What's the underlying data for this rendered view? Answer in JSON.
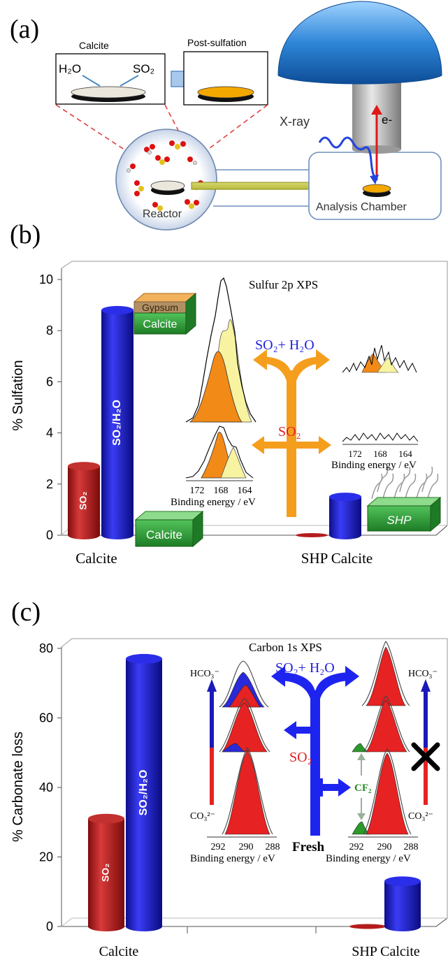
{
  "panel_labels": [
    "(a)",
    "(b)",
    "(c)"
  ],
  "schematic": {
    "calcite_box_title": "Calcite",
    "h2o": "H₂O",
    "so2": "SO₂",
    "post_sulfation_title": "Post-sulfation",
    "xray": "X-ray",
    "electron": "e-",
    "reactor": "Reactor",
    "analysis_chamber": "Analysis Chamber"
  },
  "panel_b": {
    "inset_title": "Sulfur 2p XPS",
    "layer_gypsum": "Gypsum",
    "layer_calcite": "Calcite",
    "block_calcite": "Calcite",
    "block_shp": "SHP",
    "arrow_so2_h2o": "SO₂+ H₂O",
    "arrow_so2": "SO₂",
    "be_ticks": [
      "172",
      "168",
      "164"
    ],
    "be_label_left": "Binding energy / eV",
    "be_label_right": "Binding energy / eV"
  },
  "panel_c": {
    "inset_title": "Carbon 1s XPS",
    "arrow_so2_h2o": "SO₂+ H₂O",
    "arrow_so2": "SO₂",
    "fresh": "Fresh",
    "cf2": "CF₂",
    "hco3_left": "HCO₃⁻",
    "co3_left": "CO₃²⁻",
    "hco3_right": "HCO₃⁻",
    "co3_right": "CO₃²⁻",
    "be_ticks": [
      "292",
      "290",
      "288"
    ],
    "be_label_left": "Binding energy / eV",
    "be_label_right": "Binding energy / eV"
  },
  "chart_data": [
    {
      "type": "bar",
      "ylabel": "% Sulfation",
      "ylim": [
        0,
        10
      ],
      "yticks": [
        "0",
        "2",
        "4",
        "6",
        "8",
        "10"
      ],
      "categories": [
        "Calcite",
        "SHP Calcite"
      ],
      "series": [
        {
          "name": "SO₂",
          "color": "#b51d1d",
          "values": [
            2.7,
            0.05
          ]
        },
        {
          "name": "SO₂/H₂O",
          "color": "#1c1fd6",
          "values": [
            8.8,
            1.5
          ]
        }
      ]
    },
    {
      "type": "bar",
      "ylabel": "% Carbonate loss",
      "ylim": [
        0,
        80
      ],
      "yticks": [
        "0",
        "20",
        "40",
        "60",
        "80"
      ],
      "categories": [
        "Calcite",
        "SHP Calcite"
      ],
      "series": [
        {
          "name": "SO₂",
          "color": "#b51d1d",
          "values": [
            31,
            0.5
          ]
        },
        {
          "name": "SO₂/H₂O",
          "color": "#1c1fd6",
          "values": [
            77,
            13
          ]
        }
      ]
    }
  ]
}
